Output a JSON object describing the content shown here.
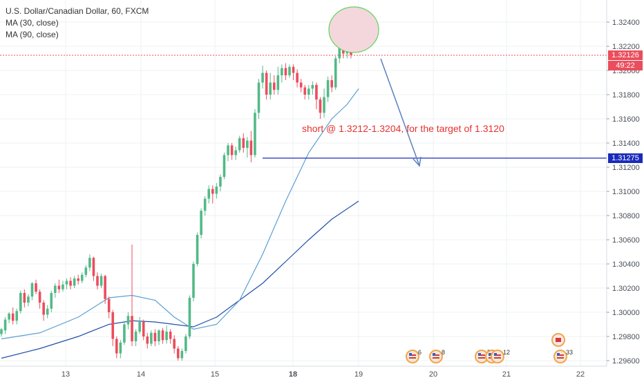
{
  "chart": {
    "title": "U.S. Dollar/Canadian Dollar, 60, FXCM",
    "indicators": [
      "MA (30, close)",
      "MA (90, close)"
    ],
    "annotation": "short @ 1.3212-1.3204, for the target of 1.3120",
    "current_price": "1.32126",
    "countdown": "49:22",
    "target_line_price": "1.31275",
    "event_markers": [
      "6",
      "8",
      "5",
      "2",
      "12",
      "33"
    ],
    "colors": {
      "up": "#53b987",
      "down": "#eb4d5c",
      "ma30": "#5a9fd4",
      "ma90": "#1f4fa8",
      "target_line": "#1a2bbb",
      "current_price": "#eb4d5c",
      "annotation": "#e4322f",
      "arrow": "#5b7fbf",
      "highlight_fill": "#f4d7dc",
      "highlight_stroke": "#5fd35f"
    }
  },
  "chart_data": {
    "type": "candlestick",
    "title": "U.S. Dollar/Canadian Dollar, 60, FXCM",
    "x_tick_labels": [
      "13",
      "14",
      "15",
      "18",
      "19",
      "20",
      "21",
      "22"
    ],
    "y_tick_labels": [
      "1.29600",
      "1.29800",
      "1.30000",
      "1.30200",
      "1.30400",
      "1.30600",
      "1.30800",
      "1.31000",
      "1.31200",
      "1.31400",
      "1.31600",
      "1.31800",
      "1.32000",
      "1.32200",
      "1.32400"
    ],
    "ylim": [
      1.2958,
      1.3252
    ],
    "grid": true,
    "current_price": 1.32126,
    "target_line": 1.31275,
    "candles": [
      [
        1.2982,
        1.2986,
        1.298,
        1.2987
      ],
      [
        1.2985,
        1.2994,
        1.2982,
        1.2996
      ],
      [
        1.2994,
        1.2999,
        1.2991,
        1.3
      ],
      [
        1.2999,
        1.2993,
        1.299,
        1.3004
      ],
      [
        1.2993,
        1.3001,
        1.299,
        1.3003
      ],
      [
        1.3001,
        1.3016,
        1.2999,
        1.3018
      ],
      [
        1.3016,
        1.3008,
        1.3004,
        1.3019
      ],
      [
        1.3008,
        1.3013,
        1.3005,
        1.3015
      ],
      [
        1.3013,
        1.3024,
        1.301,
        1.3025
      ],
      [
        1.3024,
        1.3017,
        1.3015,
        1.3027
      ],
      [
        1.3017,
        1.3008,
        1.3003,
        1.3019
      ],
      [
        1.3008,
        1.2998,
        1.2993,
        1.301
      ],
      [
        1.2998,
        1.3003,
        1.2995,
        1.3006
      ],
      [
        1.3003,
        1.3016,
        1.3,
        1.3018
      ],
      [
        1.3016,
        1.3022,
        1.3012,
        1.3024
      ],
      [
        1.3022,
        1.3019,
        1.3016,
        1.3027
      ],
      [
        1.3019,
        1.3023,
        1.3017,
        1.3026
      ],
      [
        1.3023,
        1.3026,
        1.3019,
        1.3028
      ],
      [
        1.3026,
        1.3022,
        1.3019,
        1.3029
      ],
      [
        1.3022,
        1.3028,
        1.302,
        1.303
      ],
      [
        1.3028,
        1.3026,
        1.3023,
        1.3031
      ],
      [
        1.3026,
        1.3031,
        1.3024,
        1.3033
      ],
      [
        1.3031,
        1.3037,
        1.3029,
        1.3039
      ],
      [
        1.3037,
        1.3045,
        1.3034,
        1.3048
      ],
      [
        1.3045,
        1.303,
        1.3026,
        1.3046
      ],
      [
        1.303,
        1.3022,
        1.3019,
        1.3033
      ],
      [
        1.3022,
        1.303,
        1.302,
        1.3032
      ],
      [
        1.303,
        1.3011,
        1.3007,
        1.3031
      ],
      [
        1.3011,
        1.3,
        1.2995,
        1.3013
      ],
      [
        1.3,
        1.2978,
        1.2972,
        1.3002
      ],
      [
        1.2978,
        1.2966,
        1.2962,
        1.298
      ],
      [
        1.2966,
        1.2975,
        1.2962,
        1.2977
      ],
      [
        1.2975,
        1.299,
        1.2973,
        1.2992
      ],
      [
        1.299,
        1.2997,
        1.2986,
        1.3
      ],
      [
        1.2997,
        1.2976,
        1.2972,
        1.3056
      ],
      [
        1.2976,
        1.2984,
        1.2972,
        1.2986
      ],
      [
        1.2984,
        1.2992,
        1.2982,
        1.2996
      ],
      [
        1.2992,
        1.298,
        1.2977,
        1.2994
      ],
      [
        1.298,
        1.2974,
        1.297,
        1.2983
      ],
      [
        1.2974,
        1.2983,
        1.2972,
        1.2985
      ],
      [
        1.2983,
        1.2976,
        1.2972,
        1.2986
      ],
      [
        1.2976,
        1.2985,
        1.2973,
        1.2986
      ],
      [
        1.2985,
        1.2977,
        1.2974,
        1.2987
      ],
      [
        1.2977,
        1.2984,
        1.2974,
        1.2989
      ],
      [
        1.2984,
        1.2978,
        1.2974,
        1.2986
      ],
      [
        1.2978,
        1.297,
        1.2966,
        1.2981
      ],
      [
        1.297,
        1.2962,
        1.296,
        1.2972
      ],
      [
        1.2962,
        1.2968,
        1.296,
        1.297
      ],
      [
        1.2968,
        1.298,
        1.2966,
        1.2982
      ],
      [
        1.298,
        1.3012,
        1.2978,
        1.3014
      ],
      [
        1.3012,
        1.304,
        1.3009,
        1.3042
      ],
      [
        1.304,
        1.3064,
        1.3038,
        1.3066
      ],
      [
        1.3064,
        1.3084,
        1.3061,
        1.3086
      ],
      [
        1.3084,
        1.3094,
        1.308,
        1.3096
      ],
      [
        1.3094,
        1.3102,
        1.309,
        1.3105
      ],
      [
        1.3102,
        1.3098,
        1.309,
        1.3105
      ],
      [
        1.3098,
        1.3104,
        1.3094,
        1.3107
      ],
      [
        1.3104,
        1.3112,
        1.31,
        1.3114
      ],
      [
        1.3112,
        1.313,
        1.311,
        1.3132
      ],
      [
        1.313,
        1.3138,
        1.3125,
        1.314
      ],
      [
        1.3138,
        1.313,
        1.3126,
        1.314
      ],
      [
        1.313,
        1.3134,
        1.3126,
        1.3137
      ],
      [
        1.3134,
        1.3144,
        1.3132,
        1.3146
      ],
      [
        1.3144,
        1.3136,
        1.3132,
        1.3148
      ],
      [
        1.3136,
        1.3142,
        1.3128,
        1.3145
      ],
      [
        1.3142,
        1.313,
        1.3124,
        1.315
      ],
      [
        1.313,
        1.3165,
        1.3128,
        1.3168
      ],
      [
        1.3165,
        1.319,
        1.316,
        1.3193
      ],
      [
        1.319,
        1.3198,
        1.3185,
        1.3204
      ],
      [
        1.3198,
        1.318,
        1.3176,
        1.32
      ],
      [
        1.318,
        1.319,
        1.3176,
        1.3198
      ],
      [
        1.319,
        1.3184,
        1.318,
        1.3196
      ],
      [
        1.3184,
        1.3196,
        1.318,
        1.3203
      ],
      [
        1.3196,
        1.3202,
        1.319,
        1.3205
      ],
      [
        1.3202,
        1.3196,
        1.3192,
        1.3206
      ],
      [
        1.3196,
        1.3203,
        1.3194,
        1.3205
      ],
      [
        1.3203,
        1.3198,
        1.3192,
        1.3205
      ],
      [
        1.3198,
        1.319,
        1.3186,
        1.3201
      ],
      [
        1.319,
        1.3186,
        1.3182,
        1.3193
      ],
      [
        1.3186,
        1.318,
        1.3176,
        1.3188
      ],
      [
        1.318,
        1.3185,
        1.3176,
        1.3188
      ],
      [
        1.3185,
        1.3188,
        1.318,
        1.3191
      ],
      [
        1.3188,
        1.3176,
        1.3168,
        1.319
      ],
      [
        1.3176,
        1.3165,
        1.316,
        1.3178
      ],
      [
        1.3165,
        1.3178,
        1.3161,
        1.3185
      ],
      [
        1.3178,
        1.3192,
        1.3174,
        1.3195
      ],
      [
        1.3192,
        1.3186,
        1.3182,
        1.3196
      ],
      [
        1.3186,
        1.321,
        1.3184,
        1.3212
      ],
      [
        1.321,
        1.3232,
        1.3206,
        1.3235
      ],
      [
        1.3232,
        1.3214,
        1.321,
        1.3237
      ],
      [
        1.3214,
        1.3218,
        1.321,
        1.323
      ],
      [
        1.3218,
        1.3213,
        1.321,
        1.322
      ]
    ],
    "ma30": [
      [
        0,
        1.2978
      ],
      [
        10,
        1.2983
      ],
      [
        20,
        1.2996
      ],
      [
        28,
        1.3012
      ],
      [
        34,
        1.3014
      ],
      [
        40,
        1.301
      ],
      [
        45,
        1.2996
      ],
      [
        50,
        1.2986
      ],
      [
        56,
        1.299
      ],
      [
        62,
        1.301
      ],
      [
        68,
        1.3048
      ],
      [
        74,
        1.3092
      ],
      [
        80,
        1.3132
      ],
      [
        86,
        1.316
      ],
      [
        90,
        1.3172
      ],
      [
        93,
        1.3185
      ]
    ],
    "ma90": [
      [
        0,
        1.2962
      ],
      [
        10,
        1.297
      ],
      [
        20,
        1.298
      ],
      [
        28,
        1.299
      ],
      [
        34,
        1.2993
      ],
      [
        40,
        1.2992
      ],
      [
        45,
        1.299
      ],
      [
        50,
        1.2988
      ],
      [
        56,
        1.2996
      ],
      [
        62,
        1.301
      ],
      [
        68,
        1.3024
      ],
      [
        74,
        1.3042
      ],
      [
        80,
        1.306
      ],
      [
        86,
        1.3077
      ],
      [
        93,
        1.3092
      ]
    ]
  }
}
